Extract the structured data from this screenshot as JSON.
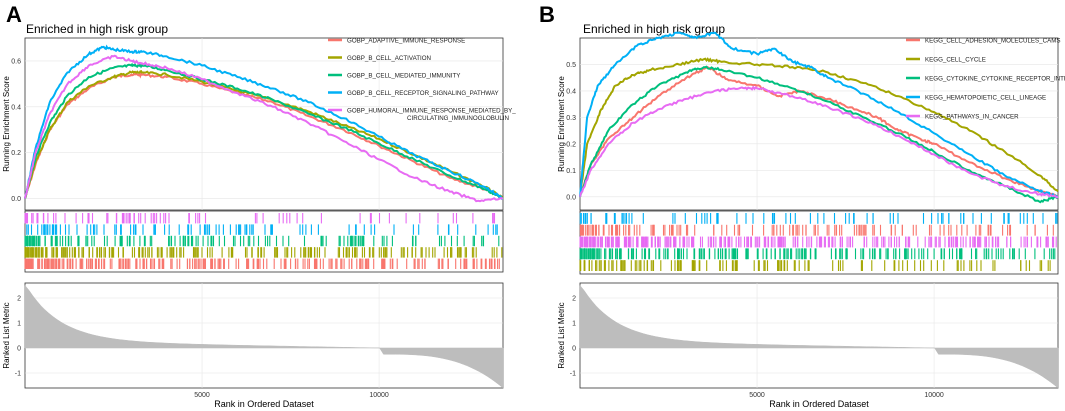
{
  "panels": [
    {
      "letter": "A",
      "title": "Enriched in high risk group",
      "legend": [
        {
          "label": "GOBP_ADAPTIVE_IMMUNE_RESPONSE",
          "color": "#f8766d"
        },
        {
          "label": "GOBP_B_CELL_ACTIVATION",
          "color": "#a3a500"
        },
        {
          "label": "GOBP_B_CELL_MEDIATED_IMMUNITY",
          "color": "#00bf7d"
        },
        {
          "label": "GOBP_B_CELL_RECEPTOR_SIGNALING_PATHWAY",
          "color": "#00b0f6"
        },
        {
          "label": "GOBP_HUMORAL_IMMUNE_RESPONSE_MEDIATED_BY_",
          "label2": "CIRCULATING_IMMUNOGLOBULIN",
          "color": "#e76bf3"
        }
      ]
    },
    {
      "letter": "B",
      "title": "Enriched in high risk group",
      "legend": [
        {
          "label": "KEGG_CELL_ADHESION_MOLECULES_CAMS",
          "color": "#f8766d"
        },
        {
          "label": "KEGG_CELL_CYCLE",
          "color": "#a3a500"
        },
        {
          "label": "KEGG_CYTOKINE_CYTOKINE_RECEPTOR_INTERACTION",
          "color": "#00bf7d"
        },
        {
          "label": "KEGG_HEMATOPOIETIC_CELL_LINEAGE",
          "color": "#00b0f6"
        },
        {
          "label": "KEGG_PATHWAYS_IN_CANCER",
          "color": "#e76bf3"
        }
      ]
    }
  ],
  "chart_data": [
    {
      "type": "line",
      "title": "Enriched in high risk group",
      "panel": "A",
      "xlabel": "Rank in Ordered Dataset",
      "ylabel": "Running Enrichment Score",
      "ylabel_bottom": "Ranked List Metric",
      "xlim": [
        0,
        13500
      ],
      "ylim": [
        -0.05,
        0.7
      ],
      "ylim_metric": [
        -1.6,
        2.6
      ],
      "x_ticks": [
        5000,
        10000
      ],
      "y_ticks": [
        0.0,
        0.2,
        0.4,
        0.6
      ],
      "y_ticks_metric": [
        -1,
        0,
        1,
        2
      ],
      "series": [
        {
          "name": "GOBP_ADAPTIVE_IMMUNE_RESPONSE",
          "color": "#f8766d",
          "x": [
            0,
            300,
            700,
            1200,
            1800,
            2500,
            3000,
            3300,
            4000,
            5000,
            6000,
            7000,
            8000,
            9000,
            10000,
            11000,
            12000,
            13000,
            13500
          ],
          "y": [
            0,
            0.15,
            0.3,
            0.41,
            0.48,
            0.53,
            0.54,
            0.54,
            0.53,
            0.5,
            0.46,
            0.42,
            0.36,
            0.3,
            0.23,
            0.16,
            0.09,
            0.04,
            0
          ]
        },
        {
          "name": "GOBP_B_CELL_ACTIVATION",
          "color": "#a3a500",
          "x": [
            0,
            300,
            700,
            1200,
            1800,
            2500,
            3000,
            3300,
            4000,
            5000,
            6000,
            7000,
            8000,
            9000,
            10000,
            11000,
            12000,
            13000,
            13500
          ],
          "y": [
            0,
            0.16,
            0.3,
            0.42,
            0.49,
            0.53,
            0.55,
            0.55,
            0.54,
            0.51,
            0.47,
            0.43,
            0.38,
            0.32,
            0.26,
            0.19,
            0.12,
            0.05,
            0
          ]
        },
        {
          "name": "GOBP_B_CELL_MEDIATED_IMMUNITY",
          "color": "#00bf7d",
          "x": [
            0,
            300,
            700,
            1200,
            1800,
            2500,
            3000,
            3300,
            4000,
            5000,
            6000,
            7000,
            8000,
            9000,
            10000,
            11000,
            12000,
            13000,
            13500
          ],
          "y": [
            0,
            0.18,
            0.33,
            0.45,
            0.53,
            0.57,
            0.58,
            0.58,
            0.56,
            0.52,
            0.48,
            0.43,
            0.37,
            0.31,
            0.24,
            0.17,
            0.1,
            0.04,
            0
          ]
        },
        {
          "name": "GOBP_B_CELL_RECEPTOR_SIGNALING_PATHWAY",
          "color": "#00b0f6",
          "x": [
            0,
            300,
            700,
            1200,
            1800,
            2200,
            2500,
            3000,
            3300,
            4000,
            5000,
            6000,
            7000,
            8000,
            9000,
            10000,
            11000,
            12000,
            13000,
            13500
          ],
          "y": [
            0,
            0.22,
            0.42,
            0.55,
            0.63,
            0.66,
            0.65,
            0.64,
            0.64,
            0.62,
            0.58,
            0.53,
            0.48,
            0.42,
            0.35,
            0.27,
            0.19,
            0.12,
            0.05,
            0
          ]
        },
        {
          "name": "GOBP_HUMORAL_IMMUNE_RESPONSE_MEDIATED_BY_CIRCULATING_IMMUNOGLOBULIN",
          "color": "#e76bf3",
          "x": [
            0,
            300,
            700,
            1200,
            1800,
            2500,
            3000,
            3300,
            4000,
            5000,
            6000,
            7000,
            8000,
            9000,
            10000,
            11000,
            12000,
            12800,
            13500
          ],
          "y": [
            0,
            0.2,
            0.37,
            0.5,
            0.58,
            0.62,
            0.6,
            0.59,
            0.57,
            0.52,
            0.46,
            0.4,
            0.33,
            0.25,
            0.17,
            0.09,
            0.03,
            -0.01,
            0
          ]
        }
      ],
      "hits": [
        {
          "name": "GOBP_HUMORAL_IMMUNE_RESPONSE_MEDIATED_BY_CIRCULATING_IMMUNOGLOBULIN",
          "color": "#e76bf3",
          "count": 75
        },
        {
          "name": "GOBP_B_CELL_RECEPTOR_SIGNALING_PATHWAY",
          "color": "#00b0f6",
          "count": 95
        },
        {
          "name": "GOBP_B_CELL_MEDIATED_IMMUNITY",
          "color": "#00bf7d",
          "count": 140
        },
        {
          "name": "GOBP_B_CELL_ACTIVATION",
          "color": "#a3a500",
          "count": 210
        },
        {
          "name": "GOBP_ADAPTIVE_IMMUNE_RESPONSE",
          "color": "#f8766d",
          "count": 260
        }
      ]
    },
    {
      "type": "line",
      "title": "Enriched in high risk group",
      "panel": "B",
      "xlabel": "Rank in Ordered Dataset",
      "ylabel": "Running Enrichment Score",
      "ylabel_bottom": "Ranked List Metric",
      "xlim": [
        0,
        13500
      ],
      "ylim": [
        -0.05,
        0.6
      ],
      "ylim_metric": [
        -1.6,
        2.6
      ],
      "x_ticks": [
        5000,
        10000
      ],
      "y_ticks": [
        0.0,
        0.1,
        0.2,
        0.3,
        0.4,
        0.5
      ],
      "y_ticks_metric": [
        -1,
        0,
        1,
        2
      ],
      "series": [
        {
          "name": "KEGG_CELL_ADHESION_MOLECULES_CAMS",
          "color": "#f8766d",
          "x": [
            0,
            300,
            800,
            1500,
            2200,
            3000,
            3600,
            4200,
            5000,
            5600,
            6200,
            7000,
            7800,
            8400,
            9000,
            9600,
            10000,
            11000,
            12000,
            12800,
            13500
          ],
          "y": [
            0,
            0.12,
            0.22,
            0.3,
            0.38,
            0.45,
            0.49,
            0.44,
            0.42,
            0.38,
            0.4,
            0.37,
            0.33,
            0.3,
            0.25,
            0.22,
            0.2,
            0.13,
            0.07,
            0.03,
            0
          ]
        },
        {
          "name": "KEGG_CELL_CYCLE",
          "color": "#a3a500",
          "x": [
            0,
            200,
            600,
            1000,
            1500,
            2000,
            2800,
            3500,
            4000,
            5000,
            6000,
            7000,
            8000,
            9000,
            10000,
            11000,
            12000,
            13000,
            13500
          ],
          "y": [
            0,
            0.2,
            0.33,
            0.42,
            0.46,
            0.48,
            0.5,
            0.52,
            0.51,
            0.5,
            0.49,
            0.47,
            0.43,
            0.38,
            0.32,
            0.25,
            0.17,
            0.08,
            0.02
          ]
        },
        {
          "name": "KEGG_CYTOKINE_CYTOKINE_RECEPTOR_INTERACTION",
          "color": "#00bf7d",
          "x": [
            0,
            300,
            800,
            1500,
            2200,
            3000,
            3500,
            4000,
            5000,
            6000,
            7000,
            8000,
            9000,
            10000,
            11000,
            12000,
            13000,
            13500
          ],
          "y": [
            0,
            0.12,
            0.25,
            0.35,
            0.42,
            0.47,
            0.49,
            0.48,
            0.45,
            0.41,
            0.36,
            0.3,
            0.24,
            0.17,
            0.1,
            0.04,
            -0.02,
            0
          ]
        },
        {
          "name": "KEGG_HEMATOPOIETIC_CELL_LINEAGE",
          "color": "#00b0f6",
          "x": [
            0,
            200,
            500,
            1000,
            1600,
            2200,
            2800,
            3300,
            3800,
            4300,
            5000,
            5500,
            6000,
            6500,
            7000,
            8000,
            9000,
            10000,
            11000,
            12000,
            13000,
            13500
          ],
          "y": [
            0,
            0.3,
            0.42,
            0.5,
            0.57,
            0.6,
            0.62,
            0.6,
            0.62,
            0.56,
            0.54,
            0.56,
            0.51,
            0.49,
            0.45,
            0.39,
            0.32,
            0.24,
            0.16,
            0.08,
            0.02,
            0
          ]
        },
        {
          "name": "KEGG_PATHWAYS_IN_CANCER",
          "color": "#e76bf3",
          "x": [
            0,
            300,
            800,
            1500,
            2200,
            3000,
            3800,
            4500,
            5000,
            6000,
            7000,
            8000,
            9000,
            10000,
            11000,
            12000,
            13000,
            13500
          ],
          "y": [
            0,
            0.1,
            0.2,
            0.28,
            0.33,
            0.37,
            0.4,
            0.41,
            0.41,
            0.38,
            0.34,
            0.29,
            0.23,
            0.16,
            0.09,
            0.04,
            0.01,
            0
          ]
        }
      ],
      "hits": [
        {
          "name": "KEGG_HEMATOPOIETIC_CELL_LINEAGE",
          "color": "#00b0f6",
          "count": 85
        },
        {
          "name": "KEGG_CELL_ADHESION_MOLECULES_CAMS",
          "color": "#f8766d",
          "count": 135
        },
        {
          "name": "KEGG_PATHWAYS_IN_CANCER",
          "color": "#e76bf3",
          "count": 300
        },
        {
          "name": "KEGG_CYTOKINE_CYTOKINE_RECEPTOR_INTERACTION",
          "color": "#00bf7d",
          "count": 220
        },
        {
          "name": "KEGG_CELL_CYCLE",
          "color": "#a3a500",
          "count": 125
        }
      ]
    }
  ]
}
